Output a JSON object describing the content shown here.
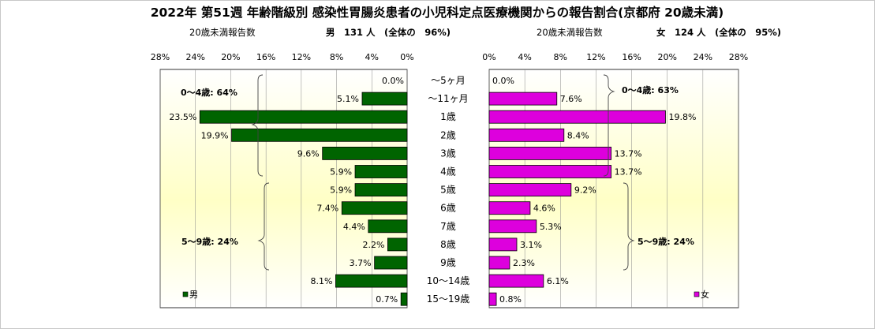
{
  "chart_data": {
    "type": "bar",
    "title": "2022年 第51週 年齢階級別 感染性胃腸炎患者の小児科定点医療機関からの報告割合(京都府 20歳未満)",
    "categories": [
      "～5ヶ月",
      "～11ヶ月",
      "1歳",
      "2歳",
      "3歳",
      "4歳",
      "5歳",
      "6歳",
      "7歳",
      "8歳",
      "9歳",
      "10～14歳",
      "15～19歳"
    ],
    "axis_ticks": [
      0,
      4,
      8,
      12,
      16,
      20,
      24,
      28
    ],
    "xlim": [
      0,
      28
    ],
    "series": [
      {
        "name": "男",
        "color": "#006400",
        "values": [
          0.0,
          5.1,
          23.5,
          19.9,
          9.6,
          5.9,
          5.9,
          7.4,
          4.4,
          2.2,
          3.7,
          8.1,
          0.7
        ],
        "header_label": "20歳未満報告数",
        "header_value": "男　131 人　(全体の　96%)",
        "groups": [
          {
            "label": "0～4歳: 64%"
          },
          {
            "label": "5～9歳: 24%"
          }
        ],
        "legend": "男"
      },
      {
        "name": "女",
        "color": "#dd00dd",
        "values": [
          0.0,
          7.6,
          19.8,
          8.4,
          13.7,
          13.7,
          9.2,
          4.6,
          5.3,
          3.1,
          2.3,
          6.1,
          0.8
        ],
        "header_label": "20歳未満報告数",
        "header_value": "女　124 人　(全体の　95%)",
        "groups": [
          {
            "label": "0～4歳: 63%"
          },
          {
            "label": "5～9歳: 24%"
          }
        ],
        "legend": "女"
      }
    ]
  }
}
